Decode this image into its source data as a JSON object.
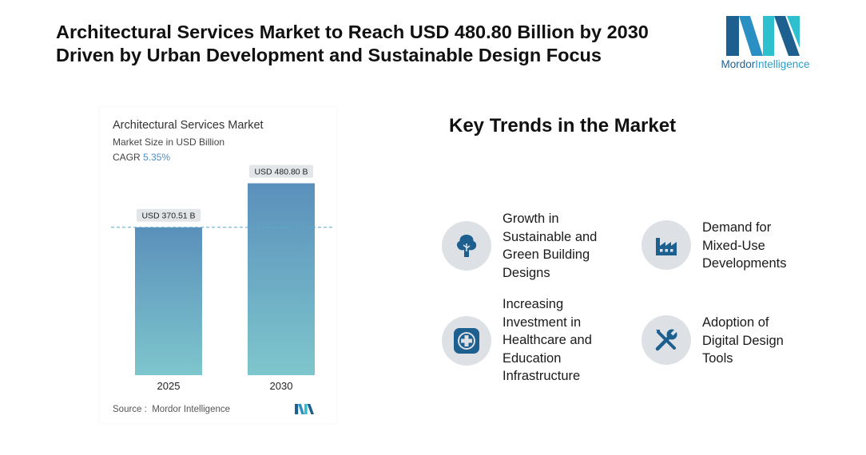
{
  "header": {
    "title_line1": "Architectural Services Market to Reach USD 480.80 Billion by 2030",
    "title_line2": "Driven by Urban Development and Sustainable Design Focus"
  },
  "brand": {
    "name_part1": "Mordor",
    "name_part2": "Intelligence",
    "colors": {
      "dark": "#1d5f8f",
      "light": "#2fc0cf"
    }
  },
  "chart_card": {
    "title": "Architectural Services Market",
    "subtitle": "Market Size in USD Billion",
    "cagr_label": "CAGR",
    "cagr_value": "5.35%",
    "source_label": "Source :",
    "source_value": "Mordor Intelligence"
  },
  "chart_data": {
    "type": "bar",
    "categories": [
      "2025",
      "2030"
    ],
    "values": [
      370.51,
      480.8
    ],
    "data_labels": [
      "USD 370.51 B",
      "USD 480.80 B"
    ],
    "ylim": [
      0,
      560
    ],
    "reference_line": 370.51,
    "grid": false,
    "colors": {
      "bar_top": "#5a90bb",
      "bar_bottom": "#7ec6cd",
      "reference_line": "#5aaad2"
    }
  },
  "trends": {
    "title": "Key Trends in the Market",
    "items": [
      {
        "label": "Growth in\nSustainable and\nGreen Building\nDesigns",
        "icon": "tree-icon"
      },
      {
        "label": "Demand for\nMixed-Use\nDevelopments",
        "icon": "factory-icon"
      },
      {
        "label": "Increasing\nInvestment in\nHealthcare and\nEducation\nInfrastructure",
        "icon": "medical-cross-icon"
      },
      {
        "label": "Adoption of\nDigital Design\nTools",
        "icon": "tools-icon"
      }
    ],
    "icon_color": "#1d5f8f",
    "icon_background": "#dde1e5"
  }
}
